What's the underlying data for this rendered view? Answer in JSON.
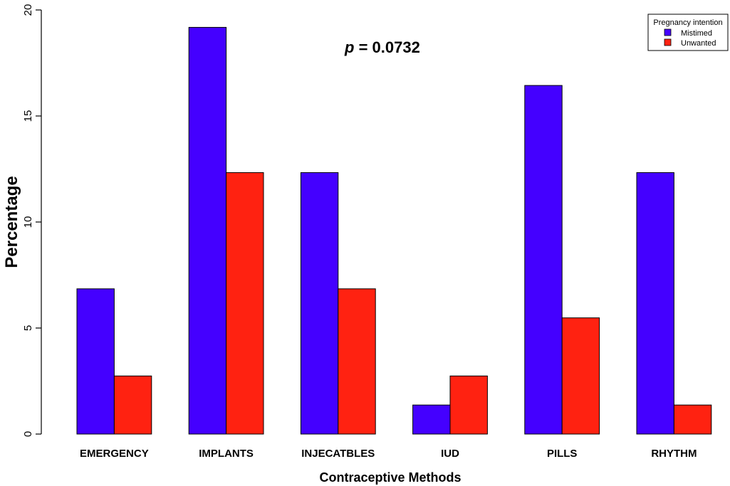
{
  "chart_data": {
    "type": "bar",
    "ylabel": "Percentage",
    "xlabel": "Contraceptive Methods",
    "ylim": [
      0,
      20
    ],
    "yticks": [
      0,
      5,
      10,
      15,
      20
    ],
    "categories": [
      "EMERGENCY",
      "IMPLANTS",
      "INJECATBLES",
      "IUD",
      "PILLS",
      "RHYTHM"
    ],
    "series": [
      {
        "name": "Mistimed",
        "color": "#4400ff",
        "values": [
          6.85,
          19.18,
          12.33,
          1.37,
          16.44,
          12.33
        ]
      },
      {
        "name": "Unwanted",
        "color": "#ff2211",
        "values": [
          2.74,
          12.33,
          6.85,
          2.74,
          5.48,
          1.37
        ]
      }
    ],
    "legend": {
      "title": "Pregnancy intention",
      "position": "top-right"
    },
    "annotation": {
      "p_symbol": "p",
      "text": " = 0.0732"
    },
    "grid": false
  }
}
